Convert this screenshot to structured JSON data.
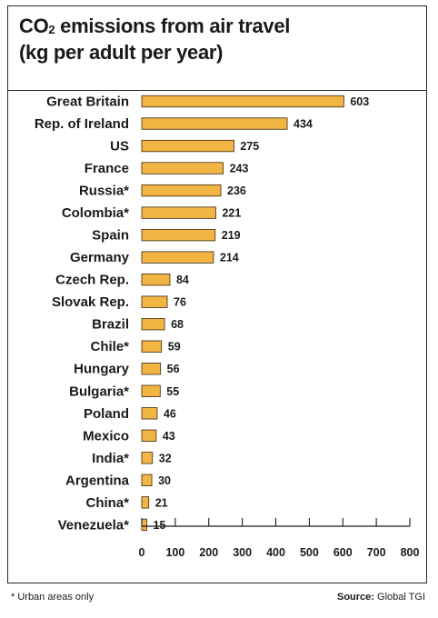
{
  "chart_data": {
    "type": "bar",
    "orientation": "horizontal",
    "title_line1_main": "CO",
    "title_line1_sub": "2",
    "title_line1_rest": " emissions from air travel",
    "title_line2": "(kg per adult per year)",
    "categories": [
      "Great Britain",
      "Rep. of Ireland",
      "US",
      "France",
      "Russia*",
      "Colombia*",
      "Spain",
      "Germany",
      "Czech Rep.",
      "Slovak Rep.",
      "Brazil",
      "Chile*",
      "Hungary",
      "Bulgaria*",
      "Poland",
      "Mexico",
      "India*",
      "Argentina",
      "China*",
      "Venezuela*"
    ],
    "values": [
      603,
      434,
      275,
      243,
      236,
      221,
      219,
      214,
      84,
      76,
      68,
      59,
      56,
      55,
      46,
      43,
      32,
      30,
      21,
      15
    ],
    "value_labels": [
      "603",
      "434",
      "275",
      "243",
      "236",
      "221",
      "219",
      "214",
      "84",
      "76",
      "68",
      "59",
      "56",
      "55",
      "46",
      "43",
      "32",
      "30",
      "21",
      "15"
    ],
    "xlim": [
      0,
      800
    ],
    "xticks": [
      0,
      100,
      200,
      300,
      400,
      500,
      600,
      700,
      800
    ],
    "xtick_labels": [
      "0",
      "100",
      "200",
      "300",
      "400",
      "500",
      "600",
      "700",
      "800"
    ],
    "xlabel": "",
    "ylabel": "",
    "grid": false,
    "bar_color": "#f2b544",
    "bar_edge_color": "#3a2a10"
  },
  "footnote": "* Urban areas only",
  "source_label": "Source:",
  "source_value": " Global TGI"
}
